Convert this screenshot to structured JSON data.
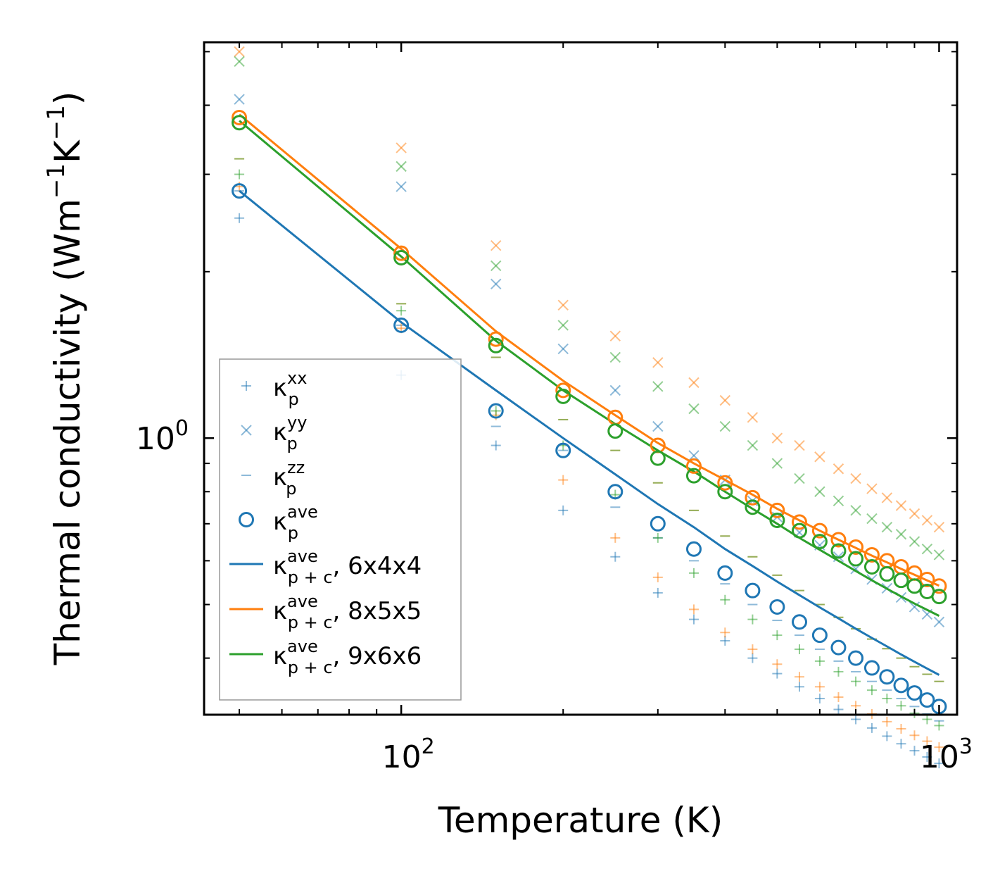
{
  "chart_data": {
    "type": "scatter",
    "title": "",
    "xlabel": "Temperature (K)",
    "ylabel": "Thermal conductivity (Wm",
    "ylabel_sup1": "−1",
    "ylabel_mid": "K",
    "ylabel_sup2": "−1",
    "ylabel_end": ")",
    "xscale": "log",
    "yscale": "log",
    "xlim": [
      43,
      1080
    ],
    "ylim": [
      0.316,
      5.2
    ],
    "x_ticks": [
      {
        "value": 100,
        "base": "10",
        "exp": "2"
      },
      {
        "value": 1000,
        "base": "10",
        "exp": "3"
      }
    ],
    "y_ticks": [
      {
        "value": 1,
        "base": "10",
        "exp": "0"
      }
    ],
    "colors": {
      "6x4x4": "#1f77b4",
      "8x5x5": "#ff7f0e",
      "9x6x6": "#2ca02c"
    },
    "temperatures": [
      50,
      100,
      150,
      200,
      250,
      300,
      350,
      400,
      450,
      500,
      550,
      600,
      650,
      700,
      750,
      800,
      850,
      900,
      950,
      1000
    ],
    "series": [
      {
        "name": "6x4x4",
        "color": "#1f77b4",
        "kxx": [
          2.5,
          1.3,
          0.97,
          0.74,
          0.61,
          0.525,
          0.47,
          0.43,
          0.4,
          0.375,
          0.355,
          0.338,
          0.323,
          0.31,
          0.299,
          0.289,
          0.28,
          0.272,
          0.265,
          0.258
        ],
        "kyy": [
          4.1,
          2.85,
          1.9,
          1.45,
          1.22,
          1.05,
          0.93,
          0.84,
          0.77,
          0.72,
          0.675,
          0.64,
          0.61,
          0.58,
          0.555,
          0.535,
          0.515,
          0.495,
          0.48,
          0.465
        ],
        "kzz": [
          2.8,
          1.6,
          1.05,
          0.95,
          0.75,
          0.66,
          0.6,
          0.545,
          0.5,
          0.468,
          0.44,
          0.415,
          0.395,
          0.378,
          0.363,
          0.35,
          0.338,
          0.327,
          0.317,
          0.308
        ],
        "kave": [
          2.8,
          1.6,
          1.12,
          0.95,
          0.8,
          0.7,
          0.63,
          0.57,
          0.53,
          0.495,
          0.465,
          0.44,
          0.418,
          0.4,
          0.384,
          0.37,
          0.357,
          0.346,
          0.336,
          0.327
        ],
        "kpc": [
          2.8,
          1.62,
          1.22,
          1.0,
          0.86,
          0.76,
          0.69,
          0.63,
          0.587,
          0.55,
          0.52,
          0.494,
          0.472,
          0.452,
          0.435,
          0.42,
          0.406,
          0.394,
          0.383,
          0.373
        ]
      },
      {
        "name": "8x5x5",
        "color": "#ff7f0e",
        "kxx": [
          2.85,
          1.58,
          1.1,
          0.84,
          0.66,
          0.56,
          0.49,
          0.445,
          0.415,
          0.39,
          0.37,
          0.355,
          0.34,
          0.328,
          0.317,
          0.307,
          0.298,
          0.29,
          0.283,
          0.276
        ],
        "kyy": [
          5.0,
          3.35,
          2.23,
          1.74,
          1.53,
          1.37,
          1.26,
          1.17,
          1.09,
          1.0,
          0.97,
          0.925,
          0.88,
          0.845,
          0.81,
          0.78,
          0.755,
          0.73,
          0.71,
          0.69
        ],
        "kzz": [
          3.2,
          1.75,
          1.4,
          1.08,
          0.95,
          0.83,
          0.74,
          0.665,
          0.61,
          0.565,
          0.53,
          0.5,
          0.474,
          0.452,
          0.433,
          0.416,
          0.4,
          0.386,
          0.374,
          0.363
        ],
        "kave": [
          3.8,
          2.16,
          1.51,
          1.22,
          1.09,
          0.97,
          0.89,
          0.83,
          0.78,
          0.74,
          0.705,
          0.68,
          0.655,
          0.635,
          0.615,
          0.6,
          0.585,
          0.57,
          0.555,
          0.54
        ],
        "kpc": [
          3.85,
          2.2,
          1.56,
          1.27,
          1.1,
          0.98,
          0.9,
          0.84,
          0.79,
          0.745,
          0.71,
          0.68,
          0.655,
          0.633,
          0.613,
          0.596,
          0.58,
          0.566,
          0.553,
          0.541
        ]
      },
      {
        "name": "9x6x6",
        "color": "#2ca02c",
        "kxx": [
          3.0,
          1.7,
          1.12,
          0.97,
          0.79,
          0.66,
          0.57,
          0.51,
          0.47,
          0.44,
          0.415,
          0.395,
          0.378,
          0.363,
          0.35,
          0.338,
          0.328,
          0.318,
          0.31,
          0.302
        ],
        "kyy": [
          4.8,
          3.1,
          2.05,
          1.6,
          1.4,
          1.24,
          1.13,
          1.05,
          0.97,
          0.9,
          0.845,
          0.8,
          0.77,
          0.74,
          0.715,
          0.69,
          0.67,
          0.65,
          0.63,
          0.615
        ],
        "kzz": [
          3.2,
          1.75,
          1.4,
          1.08,
          0.95,
          0.83,
          0.74,
          0.665,
          0.61,
          0.565,
          0.53,
          0.5,
          0.474,
          0.452,
          0.433,
          0.416,
          0.4,
          0.386,
          0.374,
          0.363
        ],
        "kave": [
          3.72,
          2.12,
          1.47,
          1.19,
          1.03,
          0.92,
          0.855,
          0.8,
          0.75,
          0.71,
          0.68,
          0.65,
          0.625,
          0.605,
          0.585,
          0.568,
          0.553,
          0.54,
          0.528,
          0.517
        ],
        "kpc": [
          3.75,
          2.13,
          1.5,
          1.22,
          1.06,
          0.95,
          0.87,
          0.8,
          0.745,
          0.7,
          0.66,
          0.628,
          0.6,
          0.575,
          0.553,
          0.534,
          0.517,
          0.502,
          0.489,
          0.477
        ]
      }
    ],
    "legend": {
      "placement": "lower-left",
      "entries": [
        {
          "marker": "plus",
          "symbol": "κ",
          "sub": "p",
          "sup": "xx",
          "suffix": ""
        },
        {
          "marker": "x",
          "symbol": "κ",
          "sub": "p",
          "sup": "yy",
          "suffix": ""
        },
        {
          "marker": "dash",
          "symbol": "κ",
          "sub": "p",
          "sup": "zz",
          "suffix": ""
        },
        {
          "marker": "circle",
          "symbol": "κ",
          "sub": "p",
          "sup": "ave",
          "suffix": ""
        },
        {
          "marker": "line",
          "color_key": "6x4x4",
          "symbol": "κ",
          "sub": "p + c",
          "sup": "ave",
          "suffix": ", 6x4x4"
        },
        {
          "marker": "line",
          "color_key": "8x5x5",
          "symbol": "κ",
          "sub": "p + c",
          "sup": "ave",
          "suffix": ", 8x5x5"
        },
        {
          "marker": "line",
          "color_key": "9x6x6",
          "symbol": "κ",
          "sub": "p + c",
          "sup": "ave",
          "suffix": ", 9x6x6"
        }
      ]
    }
  }
}
